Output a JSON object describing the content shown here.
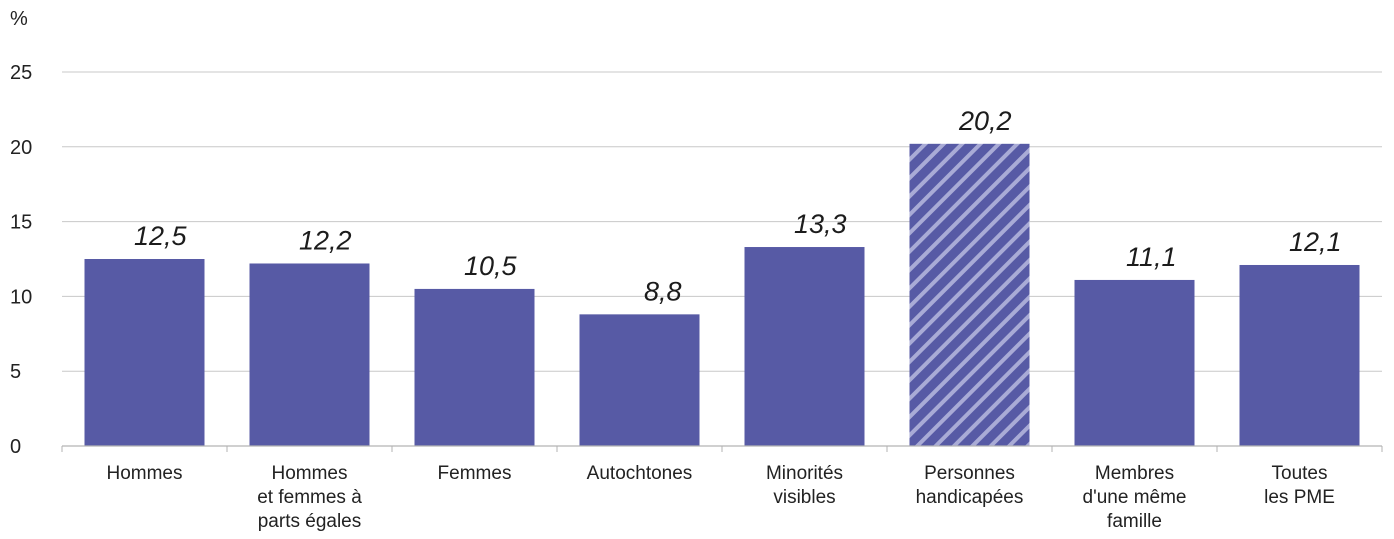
{
  "chart_data": {
    "type": "bar",
    "y_unit_label": "%",
    "categories": [
      [
        "Hommes"
      ],
      [
        "Hommes",
        "et femmes à",
        "parts égales"
      ],
      [
        "Femmes"
      ],
      [
        "Autochtones"
      ],
      [
        "Minorités",
        "visibles"
      ],
      [
        "Personnes",
        "handicapées"
      ],
      [
        "Membres",
        "d'une même",
        "famille"
      ],
      [
        "Toutes",
        "les PME"
      ]
    ],
    "values": [
      12.5,
      12.2,
      10.5,
      8.8,
      13.3,
      20.2,
      11.1,
      12.1
    ],
    "value_labels": [
      "12,5",
      "12,2",
      "10,5",
      "8,8",
      "13,3",
      "20,2",
      "11,1",
      "12,1"
    ],
    "highlighted_index": 5,
    "highlight_style": "diagonal-hatch",
    "ylim": [
      0,
      25
    ],
    "yticks": [
      0,
      5,
      10,
      15,
      20,
      25
    ],
    "grid": true,
    "legend": "none",
    "colors": {
      "bar": "#575aa5",
      "hatch_stripe": "#a9abd6",
      "grid": "#c8c8c8",
      "axis": "#b3b3b3"
    }
  }
}
